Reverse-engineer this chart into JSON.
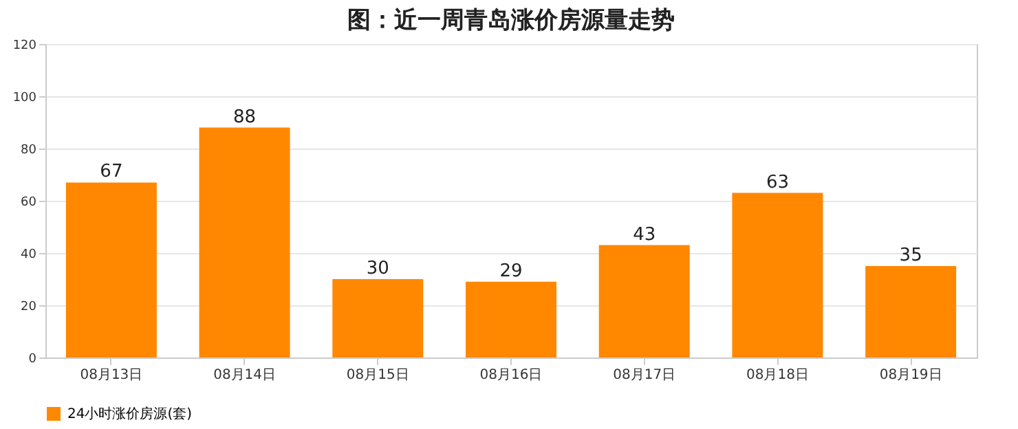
{
  "chart_data": {
    "type": "bar",
    "title": "图：近一周青岛涨价房源量走势",
    "categories": [
      "08月13日",
      "08月14日",
      "08月15日",
      "08月16日",
      "08月17日",
      "08月18日",
      "08月19日"
    ],
    "series": [
      {
        "name": "24小时涨价房源(套)",
        "color": "#ff8800",
        "values": [
          67,
          88,
          30,
          29,
          43,
          63,
          35
        ]
      }
    ],
    "ylim": [
      0,
      120
    ],
    "yticks": [
      0,
      20,
      40,
      60,
      80,
      100,
      120
    ],
    "grid": "y",
    "legend": "bottom",
    "data_labels": true
  }
}
